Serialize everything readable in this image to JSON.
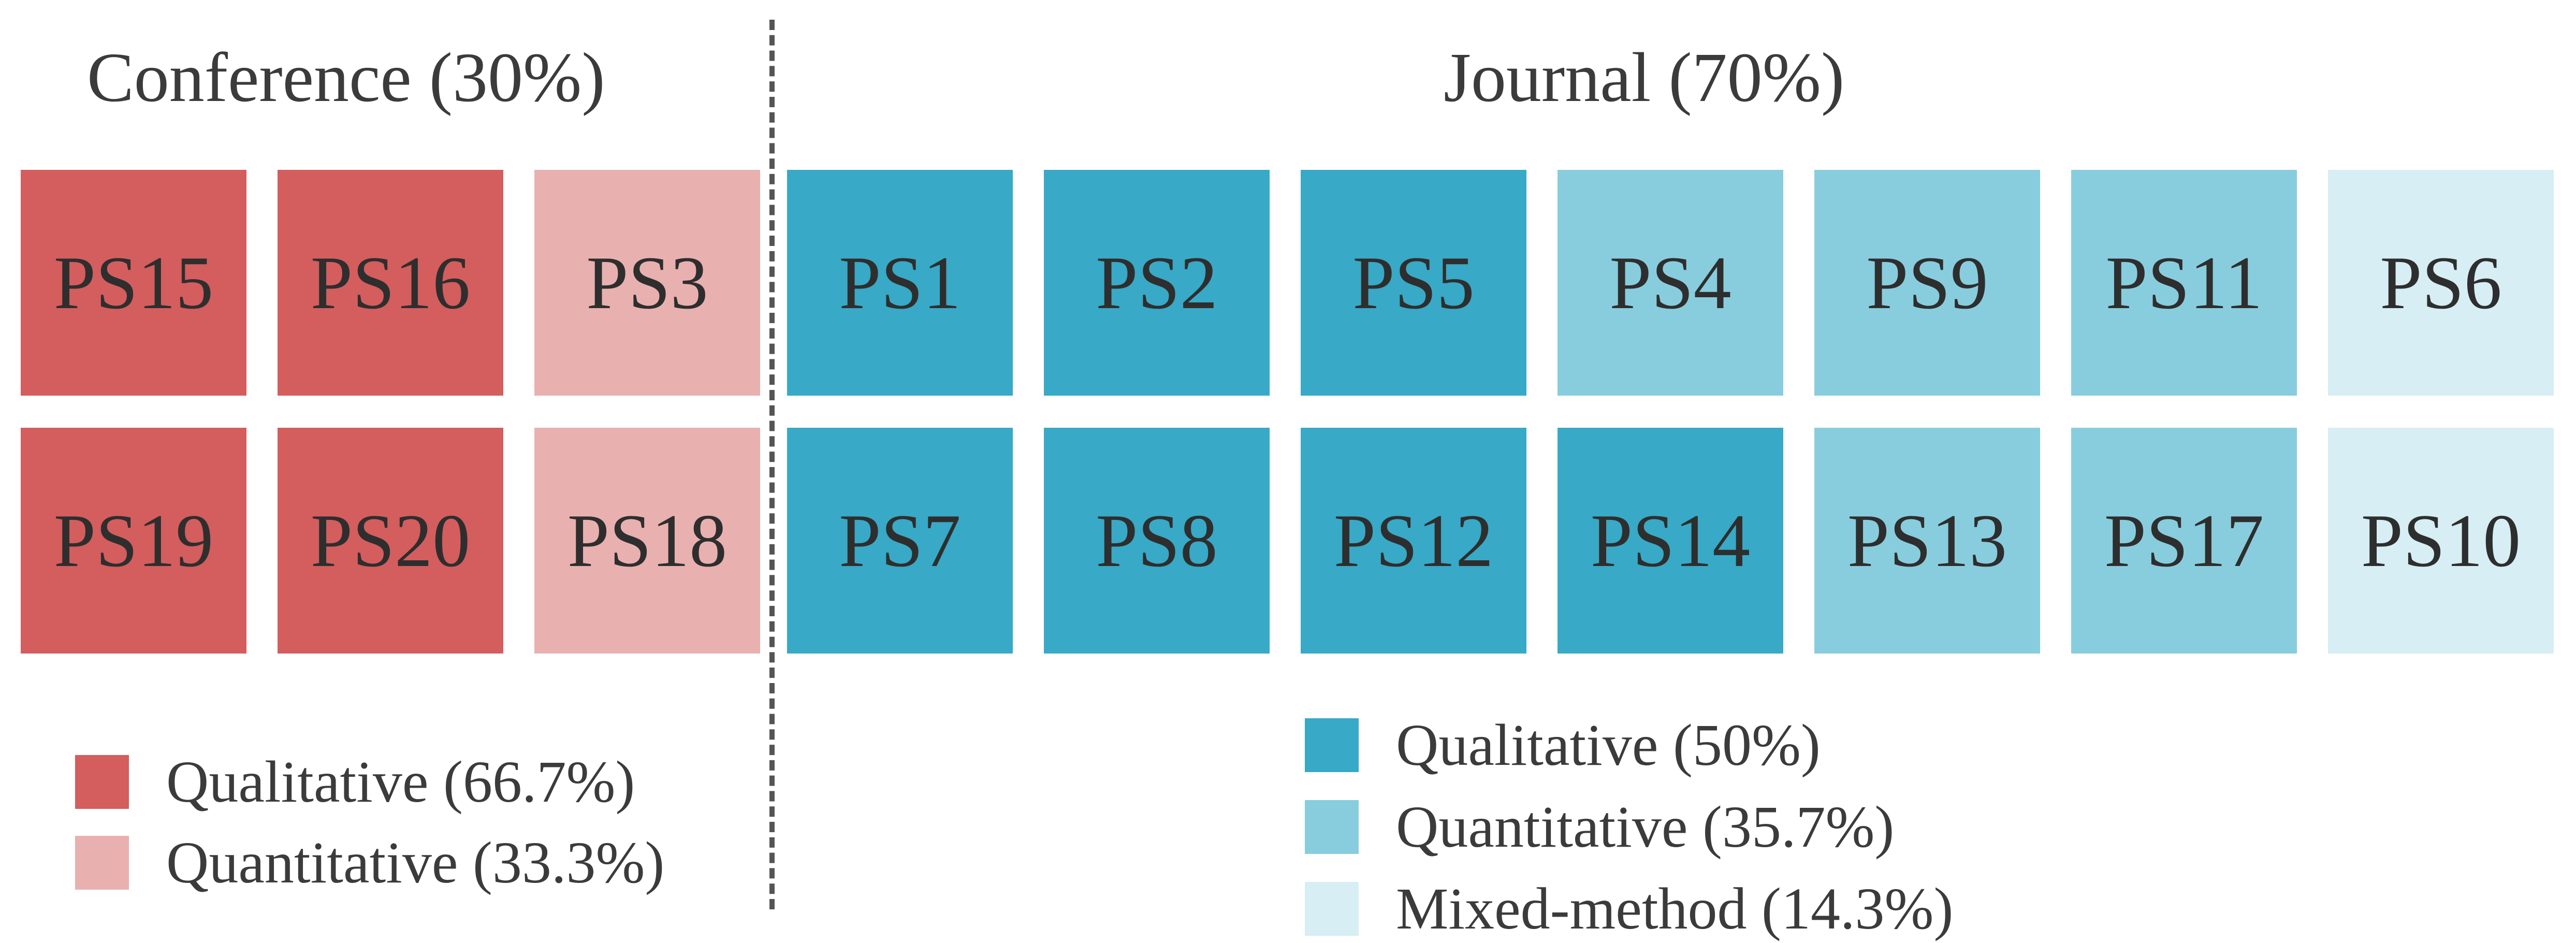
{
  "colors": {
    "conf_qualitative": "#d45d5e",
    "conf_quantitative": "#e9b0b0",
    "jour_qualitative": "#38a9c6",
    "jour_quantitative": "#88cddd",
    "jour_mixed": "#d6eef4"
  },
  "conference": {
    "title": "Conference (30%)",
    "tiles": [
      {
        "label": "PS15",
        "category": "conf_qualitative"
      },
      {
        "label": "PS16",
        "category": "conf_qualitative"
      },
      {
        "label": "PS3",
        "category": "conf_quantitative"
      },
      {
        "label": "PS19",
        "category": "conf_qualitative"
      },
      {
        "label": "PS20",
        "category": "conf_qualitative"
      },
      {
        "label": "PS18",
        "category": "conf_quantitative"
      }
    ],
    "legend": [
      {
        "label": "Qualitative (66.7%)",
        "category": "conf_qualitative"
      },
      {
        "label": "Quantitative (33.3%)",
        "category": "conf_quantitative"
      }
    ]
  },
  "journal": {
    "title": "Journal (70%)",
    "tiles": [
      {
        "label": "PS1",
        "category": "jour_qualitative"
      },
      {
        "label": "PS2",
        "category": "jour_qualitative"
      },
      {
        "label": "PS5",
        "category": "jour_qualitative"
      },
      {
        "label": "PS4",
        "category": "jour_quantitative"
      },
      {
        "label": "PS9",
        "category": "jour_quantitative"
      },
      {
        "label": "PS11",
        "category": "jour_quantitative"
      },
      {
        "label": "PS6",
        "category": "jour_mixed"
      },
      {
        "label": "PS7",
        "category": "jour_qualitative"
      },
      {
        "label": "PS8",
        "category": "jour_qualitative"
      },
      {
        "label": "PS12",
        "category": "jour_qualitative"
      },
      {
        "label": "PS14",
        "category": "jour_qualitative"
      },
      {
        "label": "PS13",
        "category": "jour_quantitative"
      },
      {
        "label": "PS17",
        "category": "jour_quantitative"
      },
      {
        "label": "PS10",
        "category": "jour_mixed"
      }
    ],
    "legend": [
      {
        "label": "Qualitative (50%)",
        "category": "jour_qualitative"
      },
      {
        "label": "Quantitative (35.7%)",
        "category": "jour_quantitative"
      },
      {
        "label": "Mixed-method (14.3%)",
        "category": "jour_mixed"
      }
    ]
  }
}
